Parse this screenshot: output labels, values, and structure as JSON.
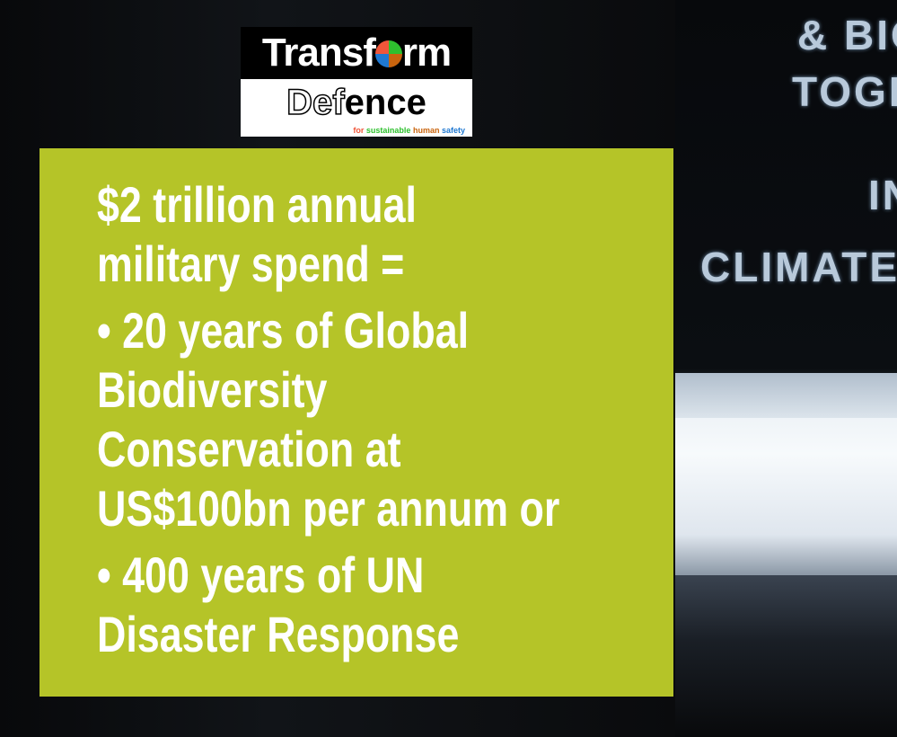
{
  "logo": {
    "line1": "Transform",
    "line2": "Defence",
    "tagline": [
      "for",
      "sustainable",
      "human",
      "safety"
    ],
    "tagline_colors": [
      "#f0563a",
      "#2ec02e",
      "#c9640e",
      "#1f78d1"
    ]
  },
  "background_text": [
    "& BIO",
    "TOGE",
    "IN",
    "CLIMATE"
  ],
  "panel": {
    "color": "#b5c428",
    "lines": [
      "$2 trillion annual",
      "military spend =",
      "• 20 years of Global",
      "Biodiversity",
      "Conservation at",
      "US$100bn per annum or",
      "• 400 years of UN",
      "Disaster Response"
    ]
  }
}
